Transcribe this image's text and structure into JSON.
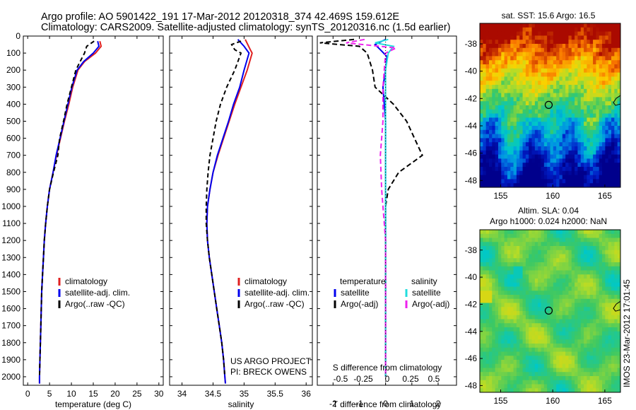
{
  "header": {
    "line1": "Argo profile: AO 5901422_191 17-Mar-2012 20120318_374 42.469S 159.612E",
    "line2": "Climatology: CARS2009. Satellite-adjusted climatology: synTS_20120316.nc (1.5d earlier)"
  },
  "colors": {
    "climatology": "#e02020",
    "satellite": "#0000ee",
    "argo": "#000000",
    "sat_salinity": "#22dddd",
    "argo_salinity": "#ee22ee"
  },
  "chart_data": [
    {
      "type": "line",
      "title": "",
      "xlabel": "temperature (deg C)",
      "ylabel": "",
      "xlim": [
        -1,
        31
      ],
      "ylim": [
        2050,
        0
      ],
      "xticks": [
        "0",
        "5",
        "10",
        "15",
        "20",
        "25",
        "30"
      ],
      "yticks": [
        "0",
        "100",
        "200",
        "300",
        "400",
        "500",
        "600",
        "700",
        "800",
        "900",
        "1000",
        "1100",
        "1200",
        "1300",
        "1400",
        "1500",
        "1600",
        "1700",
        "1800",
        "1900",
        "2000"
      ],
      "legend": [
        "climatology",
        "satellite-adj. clim.",
        "Argo(..raw -QC)"
      ],
      "series": [
        {
          "name": "climatology",
          "color": "#e02020",
          "dash": "",
          "points": [
            [
              16.5,
              30
            ],
            [
              16.8,
              60
            ],
            [
              15.5,
              100
            ],
            [
              13,
              150
            ],
            [
              11.5,
              200
            ],
            [
              10.3,
              300
            ],
            [
              9.4,
              400
            ],
            [
              8.4,
              500
            ],
            [
              7.5,
              600
            ],
            [
              6.6,
              700
            ],
            [
              5.8,
              800
            ],
            [
              5.0,
              900
            ],
            [
              4.5,
              1000
            ],
            [
              4.1,
              1100
            ],
            [
              3.8,
              1200
            ],
            [
              3.6,
              1300
            ],
            [
              3.4,
              1400
            ],
            [
              3.2,
              1500
            ],
            [
              3.0,
              1700
            ],
            [
              2.8,
              1900
            ],
            [
              2.7,
              2000
            ],
            [
              2.7,
              2040
            ]
          ]
        },
        {
          "name": "satellite-adj. clim.",
          "color": "#0000ee",
          "dash": "",
          "points": [
            [
              16.0,
              30
            ],
            [
              16.3,
              60
            ],
            [
              15.0,
              100
            ],
            [
              12.8,
              150
            ],
            [
              11.3,
              200
            ],
            [
              10.1,
              300
            ],
            [
              9.2,
              400
            ],
            [
              8.3,
              500
            ],
            [
              7.4,
              600
            ],
            [
              6.5,
              700
            ],
            [
              5.8,
              800
            ],
            [
              5.0,
              900
            ],
            [
              4.5,
              1000
            ],
            [
              4.1,
              1100
            ],
            [
              3.8,
              1200
            ],
            [
              3.6,
              1300
            ],
            [
              3.4,
              1400
            ],
            [
              3.2,
              1500
            ],
            [
              3.0,
              1700
            ],
            [
              2.8,
              1900
            ],
            [
              2.7,
              2000
            ],
            [
              2.7,
              2040
            ]
          ]
        },
        {
          "name": "Argo(..raw -QC)",
          "color": "#000000",
          "dash": "6,4",
          "points": [
            [
              15.2,
              30
            ],
            [
              13.5,
              60
            ],
            [
              13,
              100
            ],
            [
              12,
              150
            ],
            [
              11,
              200
            ],
            [
              10,
              300
            ],
            [
              9,
              400
            ],
            [
              8.2,
              500
            ],
            [
              7.3,
              600
            ],
            [
              6.9,
              700
            ],
            [
              5.9,
              800
            ],
            [
              5.0,
              900
            ],
            [
              4.5,
              1000
            ],
            [
              4.1,
              1100
            ],
            [
              3.8,
              1200
            ],
            [
              3.6,
              1300
            ],
            [
              3.4,
              1400
            ],
            [
              3.2,
              1500
            ],
            [
              3.0,
              1700
            ],
            [
              2.8,
              1900
            ],
            [
              2.7,
              2000
            ]
          ]
        }
      ]
    },
    {
      "type": "line",
      "title": "",
      "xlabel": "salinity",
      "ylabel": "",
      "xlim": [
        33.8,
        36.1
      ],
      "ylim": [
        2050,
        0
      ],
      "xticks": [
        "34",
        "34.5",
        "35",
        "35.5",
        "36"
      ],
      "legend": [
        "climatology",
        "satellite-adj. clim.",
        "Argo(..raw -QC)"
      ],
      "annotation": [
        "US ARGO PROJECT",
        "PI: BRECK OWENS"
      ],
      "series": [
        {
          "name": "climatology",
          "color": "#e02020",
          "dash": "",
          "points": [
            [
              35.02,
              20
            ],
            [
              35.1,
              80
            ],
            [
              35.13,
              100
            ],
            [
              35.05,
              200
            ],
            [
              34.95,
              300
            ],
            [
              34.85,
              400
            ],
            [
              34.76,
              500
            ],
            [
              34.67,
              600
            ],
            [
              34.58,
              700
            ],
            [
              34.5,
              800
            ],
            [
              34.45,
              900
            ],
            [
              34.41,
              1000
            ],
            [
              34.4,
              1100
            ],
            [
              34.41,
              1200
            ],
            [
              34.44,
              1300
            ],
            [
              34.48,
              1400
            ],
            [
              34.52,
              1500
            ],
            [
              34.56,
              1600
            ],
            [
              34.6,
              1700
            ],
            [
              34.64,
              1800
            ],
            [
              34.67,
              1900
            ],
            [
              34.69,
              2000
            ],
            [
              34.7,
              2040
            ]
          ]
        },
        {
          "name": "satellite-adj. clim.",
          "color": "#0000ee",
          "dash": "",
          "points": [
            [
              34.9,
              20
            ],
            [
              35.0,
              60
            ],
            [
              35.08,
              100
            ],
            [
              35.0,
              200
            ],
            [
              34.93,
              300
            ],
            [
              34.83,
              400
            ],
            [
              34.75,
              500
            ],
            [
              34.66,
              600
            ],
            [
              34.57,
              700
            ],
            [
              34.5,
              800
            ],
            [
              34.45,
              900
            ],
            [
              34.41,
              1000
            ],
            [
              34.4,
              1100
            ],
            [
              34.41,
              1200
            ],
            [
              34.44,
              1300
            ],
            [
              34.48,
              1400
            ],
            [
              34.52,
              1500
            ],
            [
              34.56,
              1600
            ],
            [
              34.6,
              1700
            ],
            [
              34.64,
              1800
            ],
            [
              34.67,
              1900
            ],
            [
              34.69,
              2000
            ],
            [
              34.7,
              2040
            ]
          ]
        },
        {
          "name": "Argo(..raw -QC)",
          "color": "#000000",
          "dash": "6,4",
          "points": [
            [
              34.95,
              30
            ],
            [
              34.8,
              50
            ],
            [
              34.85,
              80
            ],
            [
              34.95,
              100
            ],
            [
              34.85,
              200
            ],
            [
              34.72,
              300
            ],
            [
              34.62,
              400
            ],
            [
              34.55,
              500
            ],
            [
              34.5,
              600
            ],
            [
              34.45,
              700
            ],
            [
              34.42,
              800
            ],
            [
              34.4,
              900
            ],
            [
              34.39,
              1000
            ],
            [
              34.39,
              1100
            ],
            [
              34.41,
              1200
            ],
            [
              34.44,
              1300
            ],
            [
              34.48,
              1400
            ],
            [
              34.52,
              1500
            ],
            [
              34.56,
              1600
            ],
            [
              34.6,
              1700
            ],
            [
              34.64,
              1800
            ],
            [
              34.67,
              1900
            ],
            [
              34.69,
              2000
            ]
          ]
        }
      ]
    },
    {
      "type": "line",
      "title": "",
      "xlabel": "T difference from climatology",
      "xlabel_top": "S difference from climatology",
      "ylabel": "",
      "xlim": [
        -2.6,
        2.7
      ],
      "ylim": [
        2050,
        0
      ],
      "xticks": [
        "-2",
        "-1",
        "0",
        "1",
        "2"
      ],
      "xticks_s": [
        "-0.5",
        "-0.25",
        "0",
        "0.25",
        "0.5"
      ],
      "legend_temperature": "temperature",
      "legend_salinity": "salinity",
      "legend": [
        "satellite",
        "Argo(-adj)",
        "satellite",
        "Argo(-adj)"
      ],
      "series": [
        {
          "name": "satellite",
          "color": "#0000ee",
          "dash": "",
          "points": [
            [
              0,
              20
            ],
            [
              -0.4,
              50
            ],
            [
              -0.2,
              80
            ],
            [
              0.05,
              120
            ],
            [
              0,
              200
            ],
            [
              -0.1,
              300
            ],
            [
              0,
              500
            ],
            [
              0,
              1000
            ],
            [
              0,
              1500
            ],
            [
              0,
              2000
            ]
          ]
        },
        {
          "name": "Argo(-adj)",
          "color": "#000000",
          "dash": "7,4",
          "points": [
            [
              -1.2,
              20
            ],
            [
              -2.5,
              40
            ],
            [
              -1.0,
              60
            ],
            [
              -0.7,
              100
            ],
            [
              -0.5,
              200
            ],
            [
              -0.4,
              300
            ],
            [
              0.3,
              400
            ],
            [
              0.8,
              500
            ],
            [
              1.1,
              600
            ],
            [
              1.4,
              700
            ],
            [
              0.5,
              800
            ],
            [
              0.1,
              900
            ],
            [
              0,
              1000
            ],
            [
              0,
              1100
            ],
            [
              0,
              1300
            ],
            [
              0,
              1500
            ],
            [
              0,
              2000
            ]
          ]
        },
        {
          "name": "satellite",
          "color": "#22dddd",
          "dash": "",
          "points": [
            [
              0.1,
              20
            ],
            [
              -0.4,
              40
            ],
            [
              0.3,
              60
            ],
            [
              0.1,
              100
            ],
            [
              0,
              200
            ],
            [
              0,
              500
            ],
            [
              0,
              1000
            ],
            [
              0,
              1500
            ],
            [
              0,
              2000
            ]
          ]
        },
        {
          "name": "Argo(-adj)",
          "color": "#ee22ee",
          "dash": "7,4",
          "points": [
            [
              -0.8,
              20
            ],
            [
              -1.5,
              40
            ],
            [
              0.4,
              70
            ],
            [
              0,
              100
            ],
            [
              -0.1,
              300
            ],
            [
              -0.1,
              500
            ],
            [
              -0.2,
              700
            ],
            [
              -0.15,
              900
            ],
            [
              -0.1,
              1000
            ],
            [
              -0.05,
              1100
            ],
            [
              0,
              1200
            ],
            [
              0,
              1400
            ],
            [
              0,
              2000
            ]
          ]
        }
      ]
    },
    {
      "type": "heatmap",
      "title": "sat. SST: 15.6  Argo: 16.5",
      "xlim": [
        153,
        166.5
      ],
      "ylim": [
        -48.5,
        -36.5
      ],
      "xticks": [
        "155",
        "160",
        "165"
      ],
      "yticks": [
        "-38",
        "-40",
        "-42",
        "-44",
        "-46",
        "-48"
      ],
      "marker": [
        159.612,
        -42.469
      ]
    },
    {
      "type": "heatmap",
      "title": "Altim. SLA: 0.04",
      "subtitle": "Argo h1000: 0.024  h2000: NaN",
      "xlim": [
        153,
        166.5
      ],
      "ylim": [
        -48.5,
        -36.5
      ],
      "xticks": [
        "155",
        "160",
        "165"
      ],
      "yticks": [
        "-38",
        "-40",
        "-42",
        "-44",
        "-46",
        "-48"
      ],
      "marker": [
        159.612,
        -42.469
      ]
    }
  ],
  "watermark": "IMOS 23-Mar-2012 17:01:45"
}
